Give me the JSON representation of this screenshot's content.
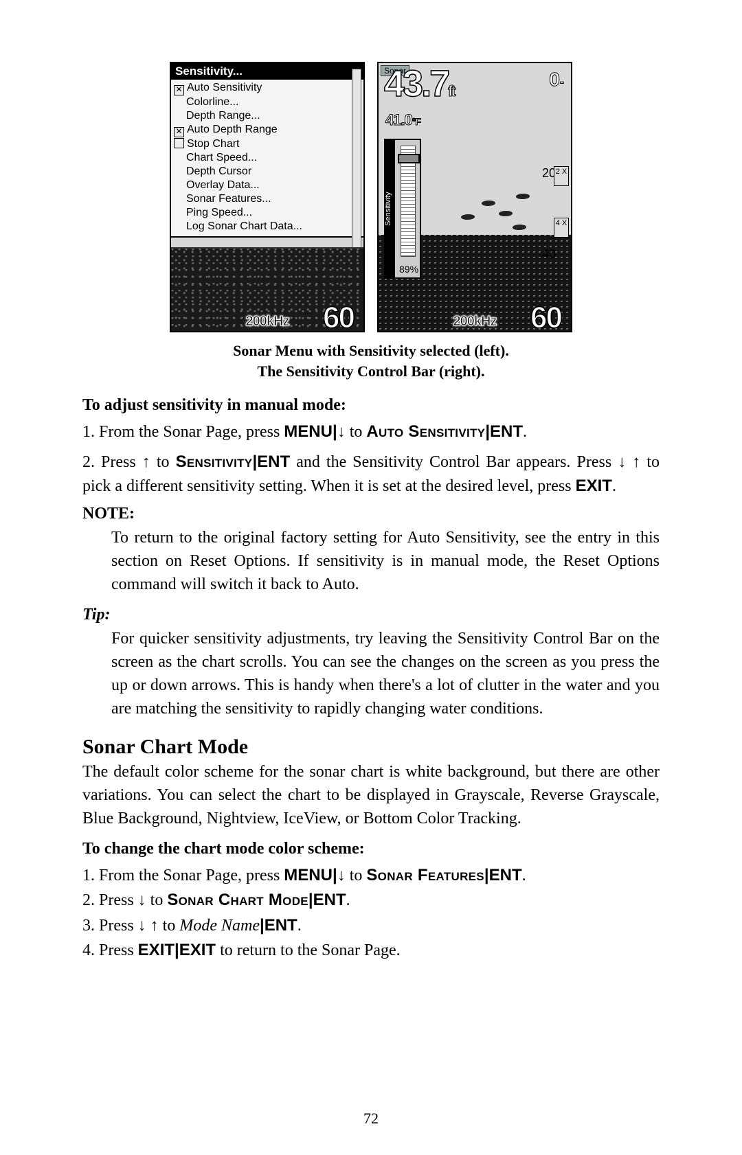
{
  "figures": {
    "left": {
      "menu_title": "Sensitivity...",
      "items": [
        {
          "type": "check",
          "checked": true,
          "label": "Auto Sensitivity"
        },
        {
          "type": "plain",
          "label": "Colorline..."
        },
        {
          "type": "plain",
          "label": "Depth Range..."
        },
        {
          "type": "check",
          "checked": true,
          "label": "Auto Depth Range"
        },
        {
          "type": "check",
          "checked": false,
          "label": "Stop Chart"
        },
        {
          "type": "plain",
          "label": "Chart Speed..."
        },
        {
          "type": "plain",
          "label": "Depth Cursor"
        },
        {
          "type": "plain",
          "label": "Overlay Data..."
        },
        {
          "type": "plain",
          "label": "Sonar Features..."
        },
        {
          "type": "plain",
          "label": "Ping Speed..."
        },
        {
          "type": "plain",
          "label": "Log Sonar Chart Data..."
        }
      ],
      "freq": "200kHz",
      "depth_big": "60"
    },
    "right": {
      "tab": "Sonar",
      "depth": "43.7",
      "depth_unit": "ft",
      "sub": "41.0",
      "sub_unit": "°F",
      "zero": "0",
      "tick20": "20",
      "tick40": "40",
      "zoom2": "2\nX",
      "zoom4": "4\nX",
      "sens_label": "Sensitivity",
      "sens_pct": "89%",
      "freq": "200kHz",
      "depth_big": "60"
    }
  },
  "caption": {
    "l1": "Sonar Menu with Sensitivity selected (left).",
    "l2": "The Sensitivity Control Bar (right)."
  },
  "sec1": {
    "heading": "To adjust sensitivity in manual mode:",
    "s1a": "1. From the Sonar Page, press ",
    "s1_menu": "MENU",
    "s1b": "|",
    "s1_arrow": "↓",
    "s1c": " to ",
    "s1_auto": "Auto Sensitivity",
    "s1d": "|",
    "s1_ent": "ENT",
    "s1e": ".",
    "s2a": "2. Press ",
    "s2_up": "↑",
    "s2b": " to ",
    "s2_sens": "Sensitivity",
    "s2c": "|",
    "s2_ent": "ENT",
    "s2d": " and the Sensitivity Control Bar appears. Press ",
    "s2_down": "↓",
    "s2_sp": " ",
    "s2_up2": "↑",
    "s2e": " to pick a different sensitivity setting. When it is set at the desired level, press ",
    "s2_exit": "EXIT",
    "s2f": "."
  },
  "note": {
    "h": "NOTE:",
    "body": "To return to the original factory setting for Auto Sensitivity, see the entry in this section on Reset Options. If sensitivity is in manual mode, the Reset Options command will switch it back to Auto."
  },
  "tip": {
    "h": "Tip:",
    "body": "For quicker sensitivity adjustments, try leaving the Sensitivity Control Bar on the screen as the chart scrolls. You can see the changes on the screen as you press the up or down arrows. This is handy when there's a lot of clutter in the water and you are matching the sensitivity to rapidly changing water conditions."
  },
  "sec2": {
    "h": "Sonar Chart Mode",
    "p": "The default color scheme for the sonar chart is white background, but there are other variations. You can select the chart to be displayed in Grayscale, Reverse Grayscale, Blue Background, Nightview, IceView, or Bottom Color Tracking.",
    "sub": "To change the chart mode color scheme:",
    "s1a": "1. From the Sonar Page, press ",
    "s1_menu": "MENU",
    "s1b": "|",
    "s1_dn": "↓",
    "s1c": " to ",
    "s1_feat": "Sonar Features",
    "s1d": "|",
    "s1_ent": "ENT",
    "s1e": ".",
    "s2a": "2. Press ",
    "s2_dn": "↓",
    "s2b": " to ",
    "s2_mode": "Sonar Chart Mode",
    "s2c": "|",
    "s2_ent": "ENT",
    "s2d": ".",
    "s3a": "3. Press ",
    "s3_dn": "↓",
    "s3_sp": " ",
    "s3_up": "↑",
    "s3b": " to ",
    "s3_name": "Mode Name",
    "s3c": "|",
    "s3_ent": "ENT",
    "s3d": ".",
    "s4a": "4. Press ",
    "s4_exit1": "EXIT",
    "s4b": "|",
    "s4_exit2": "EXIT",
    "s4c": " to return to the Sonar Page."
  },
  "page_number": "72"
}
